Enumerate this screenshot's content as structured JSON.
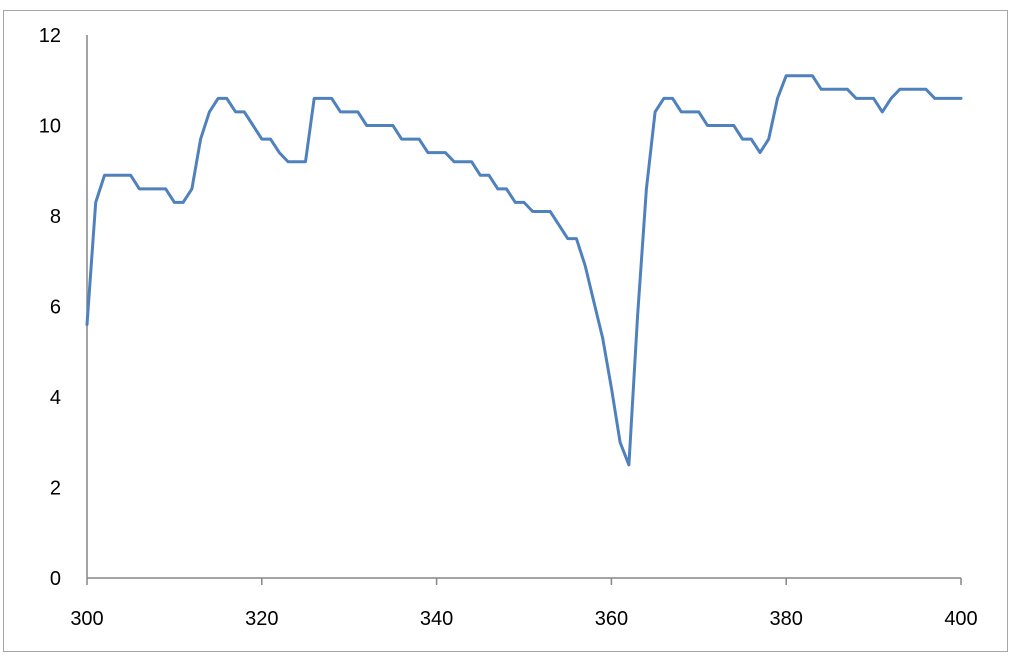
{
  "chart_data": {
    "type": "line",
    "title": "",
    "xlabel": "",
    "ylabel": "",
    "xlim": [
      300,
      400
    ],
    "ylim": [
      0,
      12
    ],
    "x_ticks": [
      300,
      320,
      340,
      360,
      380,
      400
    ],
    "y_ticks": [
      0,
      2,
      4,
      6,
      8,
      10,
      12
    ],
    "grid": false,
    "legend": "none",
    "colors": {
      "series": "#4f81bd",
      "axis": "#868686",
      "frame": "#a6a6a6"
    },
    "series": [
      {
        "x": [
          300,
          301,
          302,
          303,
          304,
          305,
          306,
          307,
          308,
          309,
          310,
          311,
          312,
          313,
          314,
          315,
          316,
          317,
          318,
          319,
          320,
          321,
          322,
          323,
          324,
          325,
          326,
          327,
          328,
          329,
          330,
          331,
          332,
          333,
          334,
          335,
          336,
          337,
          338,
          339,
          340,
          341,
          342,
          343,
          344,
          345,
          346,
          347,
          348,
          349,
          350,
          351,
          352,
          353,
          354,
          355,
          356,
          357,
          358,
          359,
          360,
          361,
          362,
          363,
          364,
          365,
          366,
          367,
          368,
          369,
          370,
          371,
          372,
          373,
          374,
          375,
          376,
          377,
          378,
          379,
          380,
          381,
          382,
          383,
          384,
          385,
          386,
          387,
          388,
          389,
          390,
          391,
          392,
          393,
          394,
          395,
          396,
          397,
          398,
          399,
          400
        ],
        "values": [
          5.6,
          8.3,
          8.9,
          8.9,
          8.9,
          8.9,
          8.6,
          8.6,
          8.6,
          8.6,
          8.3,
          8.3,
          8.6,
          9.7,
          10.3,
          10.6,
          10.6,
          10.3,
          10.3,
          10.0,
          9.7,
          9.7,
          9.4,
          9.2,
          9.2,
          9.2,
          10.6,
          10.6,
          10.6,
          10.3,
          10.3,
          10.3,
          10.0,
          10.0,
          10.0,
          10.0,
          9.7,
          9.7,
          9.7,
          9.4,
          9.4,
          9.4,
          9.2,
          9.2,
          9.2,
          8.9,
          8.9,
          8.6,
          8.6,
          8.3,
          8.3,
          8.1,
          8.1,
          8.1,
          7.8,
          7.5,
          7.5,
          6.9,
          6.1,
          5.3,
          4.2,
          3.0,
          2.5,
          5.8,
          8.6,
          10.3,
          10.6,
          10.6,
          10.3,
          10.3,
          10.3,
          10.0,
          10.0,
          10.0,
          10.0,
          9.7,
          9.7,
          9.4,
          9.7,
          10.6,
          11.1,
          11.1,
          11.1,
          11.1,
          10.8,
          10.8,
          10.8,
          10.8,
          10.6,
          10.6,
          10.6,
          10.3,
          10.6,
          10.8,
          10.8,
          10.8,
          10.8,
          10.6,
          10.6,
          10.6,
          10.6
        ]
      }
    ]
  }
}
